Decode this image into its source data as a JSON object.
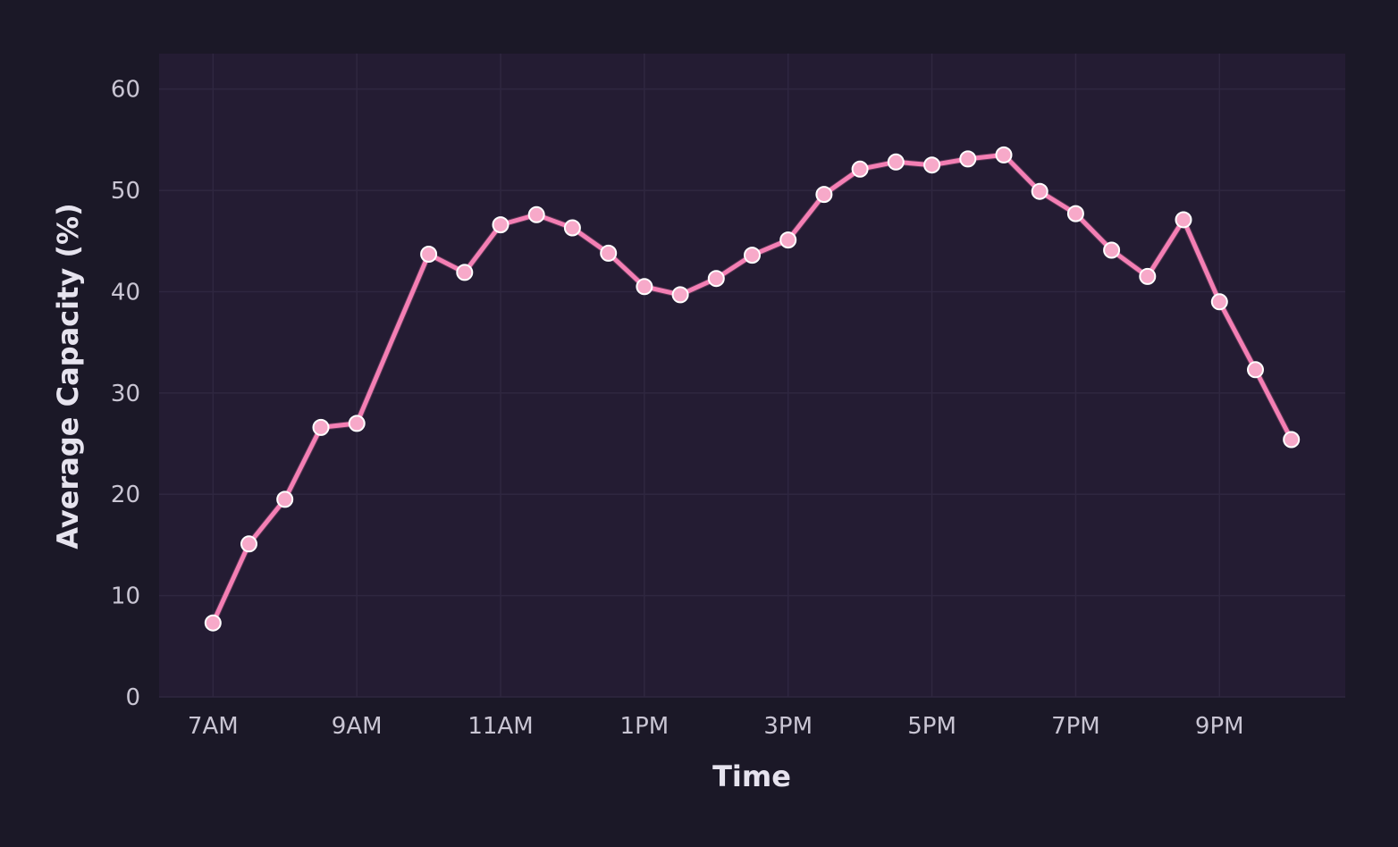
{
  "chart_data": {
    "type": "line",
    "title": "",
    "xlabel": "Time",
    "ylabel": "Average Capacity (%)",
    "x_tick_labels": [
      "7AM",
      "9AM",
      "11AM",
      "1PM",
      "3PM",
      "5PM",
      "7PM",
      "9PM"
    ],
    "y_ticks": [
      0,
      10,
      20,
      30,
      40,
      50,
      60
    ],
    "ylim": [
      0,
      63.5
    ],
    "xlim": [
      "6:15AM",
      "10:45PM"
    ],
    "grid": true,
    "series": [
      {
        "x": [
          "7:00AM",
          "7:30AM",
          "8:00AM",
          "8:30AM",
          "9:00AM",
          "9:30AM",
          "10:00AM",
          "10:30AM",
          "11:00AM",
          "11:30AM",
          "12:00PM",
          "12:30PM",
          "1:00PM",
          "1:30PM",
          "2:00PM",
          "2:30PM",
          "3:00PM",
          "3:30PM",
          "4:00PM",
          "4:30PM",
          "5:00PM",
          "5:30PM",
          "6:00PM",
          "6:30PM",
          "7:00PM",
          "7:30PM",
          "8:00PM",
          "8:30PM",
          "9:00PM",
          "9:30PM",
          "10:00PM"
        ],
        "values": [
          7.3,
          15.1,
          19.5,
          26.6,
          27.0,
          35.4,
          43.7,
          41.9,
          46.6,
          47.6,
          46.3,
          43.8,
          40.5,
          39.7,
          41.3,
          43.6,
          45.1,
          49.6,
          52.1,
          52.8,
          52.5,
          53.1,
          53.5,
          49.9,
          47.7,
          44.1,
          41.5,
          47.1,
          39.0,
          32.3,
          25.4
        ],
        "markers": [
          true,
          true,
          true,
          true,
          true,
          false,
          true,
          true,
          true,
          true,
          true,
          true,
          true,
          true,
          true,
          true,
          true,
          true,
          true,
          true,
          true,
          true,
          true,
          true,
          true,
          true,
          true,
          true,
          true,
          true,
          true
        ]
      }
    ],
    "colors": {
      "background": "#1b1827",
      "plot_background": "#241c33",
      "grid": "#2f2740",
      "line": "#f47fb4",
      "marker_fill": "#f7a9c9",
      "marker_edge": "#ffffff",
      "tick_text": "#c9c5d3",
      "axis_title": "#e6e3ee"
    }
  }
}
